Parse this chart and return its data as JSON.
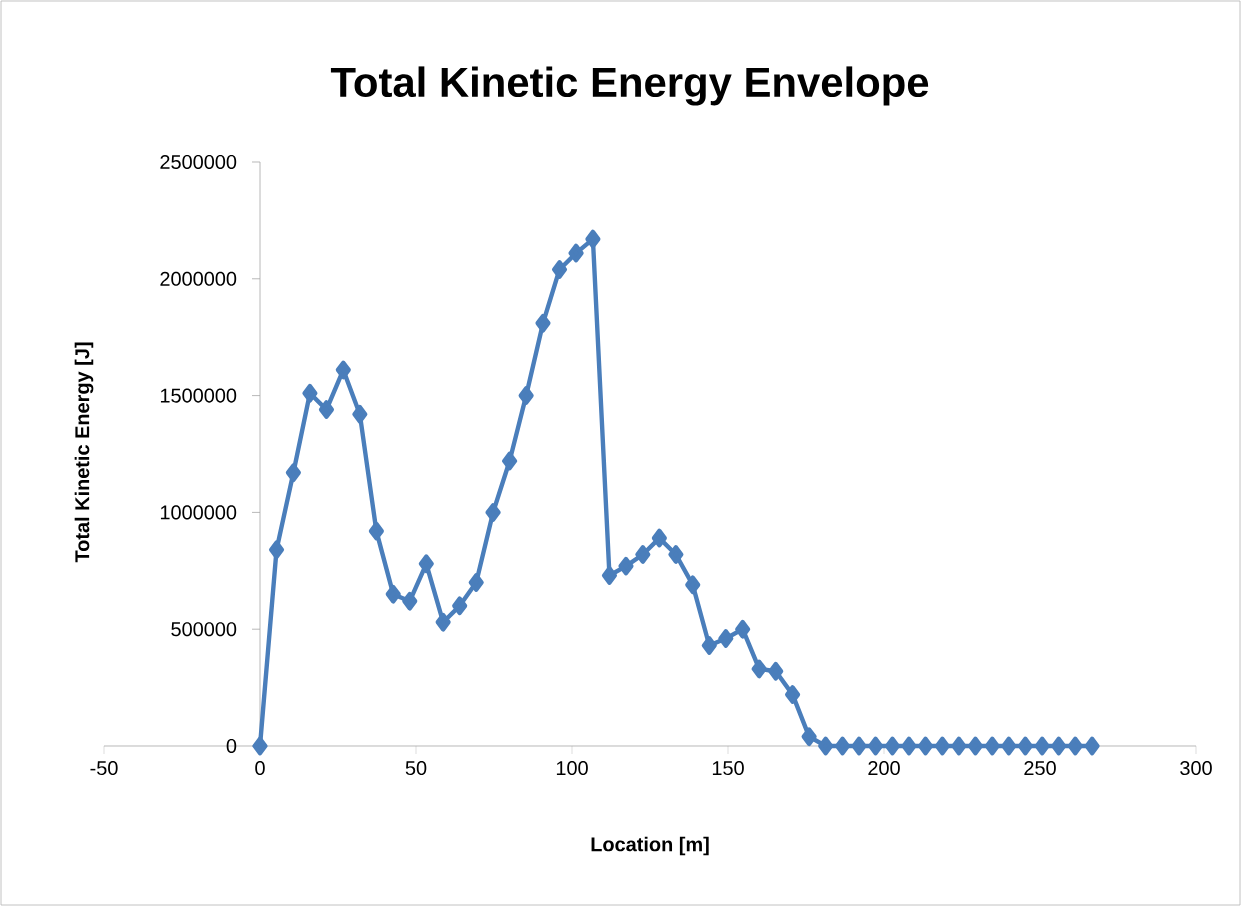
{
  "chart_data": {
    "type": "line",
    "title": "Total Kinetic Energy Envelope",
    "xlabel": "Location [m]",
    "ylabel": "Total Kinetic Energy [J]",
    "x": [
      0,
      5.3,
      10.7,
      16,
      21.3,
      26.7,
      32,
      37.3,
      42.7,
      48,
      53.3,
      58.7,
      64,
      69.3,
      74.7,
      80,
      85.3,
      90.7,
      96,
      101.3,
      106.7,
      112,
      117.3,
      122.7,
      128,
      133.3,
      138.7,
      144,
      149.3,
      154.7,
      160,
      165.3,
      170.7,
      176,
      181.3,
      186.7,
      192,
      197.3,
      202.7,
      208,
      213.3,
      218.7,
      224,
      229.3,
      234.7,
      240,
      245.3,
      250.7,
      256,
      261.3,
      266.7
    ],
    "series": [
      {
        "color": "#4a7ebb",
        "values": [
          0,
          840000,
          1170000,
          1510000,
          1440000,
          1610000,
          1420000,
          920000,
          650000,
          620000,
          780000,
          530000,
          600000,
          700000,
          1000000,
          1220000,
          1500000,
          1810000,
          2040000,
          2110000,
          2170000,
          730000,
          770000,
          820000,
          890000,
          820000,
          690000,
          430000,
          460000,
          500000,
          330000,
          320000,
          220000,
          40000,
          0,
          0,
          0,
          0,
          0,
          0,
          0,
          0,
          0,
          0,
          0,
          0,
          0,
          0,
          0,
          0,
          0
        ]
      }
    ],
    "xlim": [
      -50,
      300
    ],
    "xticks": [
      -50,
      0,
      50,
      100,
      150,
      200,
      250,
      300
    ],
    "ylim": [
      0,
      2500000
    ],
    "yticks": [
      0,
      500000,
      1000000,
      1500000,
      2000000,
      2500000
    ],
    "marker": "diamond",
    "line_style": "solid"
  }
}
